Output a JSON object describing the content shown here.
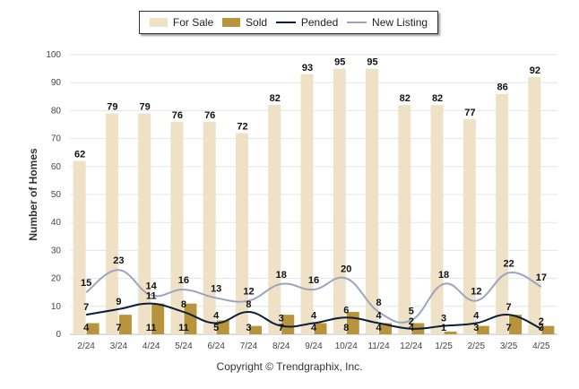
{
  "legend": [
    {
      "label": "For Sale",
      "color": "#efe1c6",
      "kind": "bar"
    },
    {
      "label": "Sold",
      "color": "#b8943c",
      "kind": "bar"
    },
    {
      "label": "Pended",
      "color": "#0b1f3a",
      "kind": "line"
    },
    {
      "label": "New Listing",
      "color": "#9aa6bd",
      "kind": "line"
    }
  ],
  "ylabel": "Number of Homes",
  "copyright": "Copyright © Trendgraphix, Inc.",
  "chart_data": {
    "type": "bar",
    "categories": [
      "2/24",
      "3/24",
      "4/24",
      "5/24",
      "6/24",
      "7/24",
      "8/24",
      "9/24",
      "10/24",
      "11/24",
      "12/24",
      "1/25",
      "2/25",
      "3/25",
      "4/25"
    ],
    "ylim": [
      0,
      100
    ],
    "yticks": [
      0,
      10,
      20,
      30,
      40,
      50,
      60,
      70,
      80,
      90,
      100
    ],
    "ylabel": "Number of Homes",
    "grid": true,
    "legend_position": "top",
    "series": [
      {
        "name": "For Sale",
        "type": "bar",
        "color": "#efe1c6",
        "values": [
          62,
          79,
          79,
          76,
          76,
          72,
          82,
          93,
          95,
          95,
          82,
          82,
          77,
          86,
          92
        ]
      },
      {
        "name": "Sold",
        "type": "bar",
        "color": "#b8943c",
        "values": [
          4,
          7,
          11,
          11,
          5,
          3,
          7,
          4,
          8,
          4,
          4,
          1,
          3,
          7,
          3
        ]
      },
      {
        "name": "Pended",
        "type": "line",
        "color": "#0b1f3a",
        "values": [
          7,
          9,
          11,
          8,
          4,
          8,
          3,
          4,
          6,
          4,
          2,
          3,
          4,
          7,
          2
        ]
      },
      {
        "name": "New Listing",
        "type": "line",
        "color": "#9aa6bd",
        "values": [
          15,
          23,
          14,
          16,
          13,
          12,
          18,
          16,
          20,
          8,
          5,
          18,
          12,
          22,
          17
        ]
      }
    ]
  }
}
